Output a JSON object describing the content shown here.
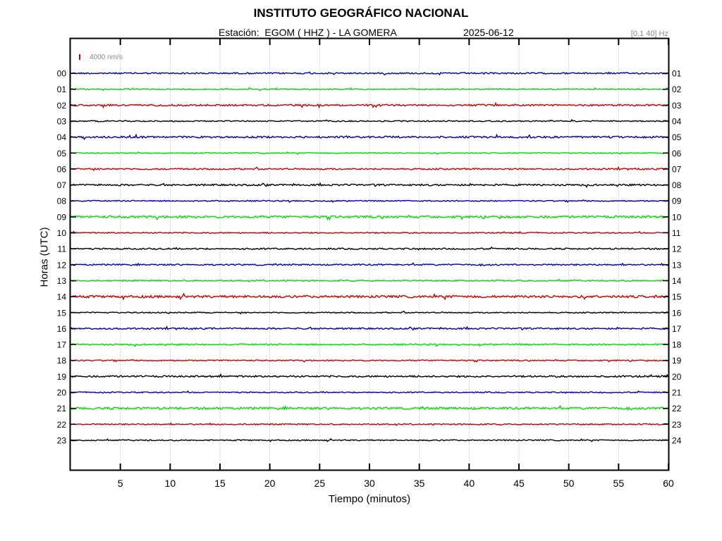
{
  "header": {
    "title": "INSTITUTO GEOGRÁFICO NACIONAL",
    "station_text": "Estación:  EGOM ( HHZ ) - LA GOMERA",
    "date": "2025-06-12",
    "filter_band": "[0.1 40] Hz",
    "scale_label": "4000 nm/s"
  },
  "chart_data": {
    "type": "line",
    "title": "INSTITUTO GEOGRÁFICO NACIONAL",
    "xlabel": "Tiempo (minutos)",
    "ylabel": "Horas (UTC)",
    "xlim": [
      0,
      60
    ],
    "x_ticks": [
      5,
      10,
      15,
      20,
      25,
      30,
      35,
      40,
      45,
      50,
      55,
      60
    ],
    "grid": true,
    "left_ticks": [
      "00",
      "01",
      "02",
      "03",
      "04",
      "05",
      "06",
      "07",
      "08",
      "09",
      "10",
      "11",
      "12",
      "13",
      "14",
      "15",
      "16",
      "17",
      "18",
      "19",
      "20",
      "21",
      "22",
      "23"
    ],
    "right_ticks": [
      "01",
      "02",
      "03",
      "04",
      "05",
      "06",
      "07",
      "08",
      "09",
      "10",
      "11",
      "12",
      "13",
      "14",
      "15",
      "16",
      "17",
      "18",
      "19",
      "20",
      "21",
      "22",
      "23",
      "24"
    ],
    "trace_colors": [
      "#0000aa",
      "#00dd00",
      "#cc0000",
      "#000000"
    ],
    "scale_bar_color": "#cc0000",
    "noise_amplitude": [
      1,
      0.8,
      1.2,
      0.8,
      1.3,
      0.7,
      1,
      1.2,
      0.8,
      1.5,
      0.8,
      1,
      1,
      0.9,
      1.6,
      0.8,
      1.1,
      1,
      0.8,
      1.2,
      0.8,
      1.5,
      0.9,
      0.8
    ]
  }
}
